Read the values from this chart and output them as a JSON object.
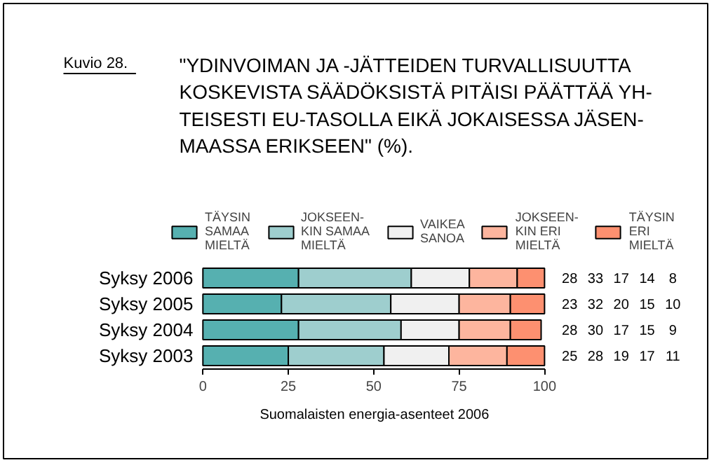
{
  "chart_data": {
    "type": "bar",
    "orientation": "horizontal",
    "stacked": true,
    "title": "\"YDINVOIMAN JA -JÄTTEIDEN TURVALLISUUTTA\nKOSKEVISTA SÄÄDÖKSISTÄ PITÄISI PÄÄTTÄÄ YH-\nTEISESTI EU-TASOLLA EIKÄ JOKAISESSA JÄSEN-\nMAASSA ERIKSEEN\" (%).",
    "annotations": [
      "Kuvio 28.",
      "Suomalaisten energia-asenteet 2006"
    ],
    "categories": [
      "Syksy 2006",
      "Syksy 2005",
      "Syksy 2004",
      "Syksy 2003"
    ],
    "series": [
      {
        "name": "TÄYSIN\nSAMAA\nMIELTÄ",
        "color": "#56b0b0",
        "values": [
          28,
          23,
          28,
          25
        ]
      },
      {
        "name": "JOKSEEN-\nKIN SAMAA\nMIELTÄ",
        "color": "#9ecece",
        "values": [
          33,
          32,
          30,
          28
        ]
      },
      {
        "name": "VAIKEA\nSANOA",
        "color": "#f0f0f0",
        "values": [
          17,
          20,
          17,
          19
        ]
      },
      {
        "name": "JOKSEEN-\nKIN ERI\nMIELTÄ",
        "color": "#fdb59e",
        "values": [
          14,
          15,
          15,
          17
        ]
      },
      {
        "name": "TÄYSIN\nERI\nMIELTÄ",
        "color": "#fd9070",
        "values": [
          8,
          10,
          9,
          11
        ]
      }
    ],
    "xlim": [
      0,
      100
    ],
    "xticks": [
      0,
      25,
      50,
      75,
      100
    ],
    "data_labels": true,
    "legend": "top"
  }
}
